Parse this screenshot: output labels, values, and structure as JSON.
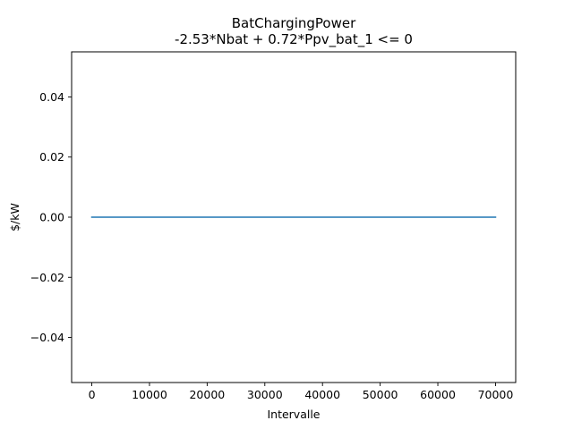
{
  "chart_data": {
    "type": "line",
    "title": "BatChargingPower",
    "subtitle": "-2.53*Nbat + 0.72*Ppv_bat_1 <= 0",
    "xlabel": "Intervalle",
    "ylabel": "$/kW",
    "xlim": [
      -3500,
      73500
    ],
    "ylim": [
      -0.055,
      0.055
    ],
    "x_ticks": [
      0,
      10000,
      20000,
      30000,
      40000,
      50000,
      60000,
      70000
    ],
    "x_tick_labels": [
      "0",
      "10000",
      "20000",
      "30000",
      "40000",
      "50000",
      "60000",
      "70000"
    ],
    "y_ticks": [
      -0.04,
      -0.02,
      0.0,
      0.02,
      0.04
    ],
    "y_tick_labels": [
      "−0.04",
      "−0.02",
      "0.00",
      "0.02",
      "0.04"
    ],
    "grid": false,
    "legend": "none",
    "series": [
      {
        "color": "#1f77b4",
        "x": [
          0,
          70000
        ],
        "y": [
          0,
          0
        ]
      }
    ]
  }
}
